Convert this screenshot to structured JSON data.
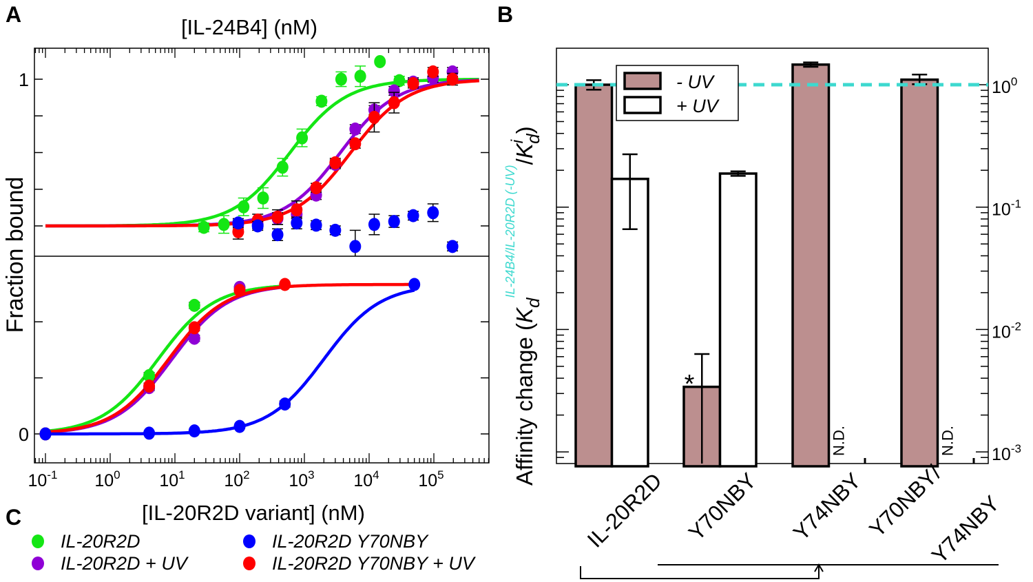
{
  "panel_labels": {
    "a": "A",
    "b": "B",
    "c": "C"
  },
  "colors": {
    "green": "#14e614",
    "purple": "#8f00d6",
    "red": "#ff0000",
    "blue": "#0000ff",
    "minus_uv_bar": "#bc8f8f",
    "reference_line": "#3dd9cf",
    "star": "#ffa500"
  },
  "chart_data": [
    {
      "type": "scatter",
      "panel": "A-top",
      "title": "[IL-24B4] (nM)",
      "ylabel": "Fraction bound",
      "x_scale": "log",
      "xlim": [
        0.07,
        700000
      ],
      "ylim": [
        -0.2,
        1.2
      ],
      "y_tick_labels": [
        {
          "value": 1,
          "label": "1"
        }
      ],
      "y_ticks": [
        0,
        0.25,
        0.5,
        0.75,
        1
      ],
      "series": [
        {
          "key": "green",
          "x": [
            28,
            57,
            115,
            230,
            460,
            920,
            1840,
            3700,
            7300,
            14700,
            29300
          ],
          "y": [
            -0.01,
            0.01,
            0.13,
            0.19,
            0.4,
            0.6,
            0.85,
            1.0,
            1.02,
            1.12,
            0.99
          ],
          "err": [
            0.03,
            0.06,
            0.06,
            0.07,
            0.06,
            0.06,
            0.03,
            0.05,
            0.07,
            0.0,
            0.03
          ],
          "fit_kd": 600
        },
        {
          "key": "purple",
          "x": [
            95,
            190,
            385,
            760,
            1520,
            3000,
            6100,
            12000,
            24300,
            48000,
            97000,
            194000
          ],
          "y": [
            0.01,
            0.01,
            0.05,
            0.08,
            0.21,
            0.42,
            0.66,
            0.79,
            0.92,
            0.98,
            1.01,
            1.05
          ],
          "err": [
            0.03,
            0.03,
            0.04,
            0.03,
            0.03,
            0.03,
            0.03,
            0.03,
            0.03,
            0.03,
            0.03,
            0.03
          ],
          "fit_kd": 3600
        },
        {
          "key": "red",
          "x": [
            95,
            190,
            385,
            760,
            1520,
            3000,
            6100,
            12000,
            24300,
            48000,
            97000,
            194000
          ],
          "y": [
            -0.04,
            0.04,
            0.06,
            0.11,
            0.26,
            0.43,
            0.56,
            0.74,
            0.84,
            0.97,
            1.05,
            1.0
          ],
          "err": [
            0.05,
            0.04,
            0.05,
            0.06,
            0.03,
            0.03,
            0.03,
            0.1,
            0.07,
            0.03,
            0.03,
            0.04
          ],
          "fit_kd": 5200
        },
        {
          "key": "blue",
          "x": [
            95,
            190,
            385,
            760,
            1520,
            3000,
            6100,
            12000,
            24300,
            48000,
            97000,
            194000
          ],
          "y": [
            0.02,
            0.0,
            -0.06,
            0.02,
            0.005,
            -0.03,
            -0.14,
            0.01,
            0.03,
            0.07,
            0.09,
            -0.14
          ],
          "err": [
            0.03,
            0.03,
            0.04,
            0.04,
            0.03,
            0.03,
            0.11,
            0.07,
            0.04,
            0.03,
            0.06,
            0.03
          ]
        }
      ]
    },
    {
      "type": "scatter",
      "panel": "A-bottom",
      "xlabel": "[IL-20R2D variant] (nM)",
      "x_scale": "log",
      "xlim": [
        0.07,
        700000
      ],
      "ylim": [
        -0.19,
        1.2
      ],
      "x_tick_labels": [
        "-1",
        "0",
        "1",
        "2",
        "3",
        "4",
        "5"
      ],
      "y_tick_labels": [
        {
          "value": 0,
          "label": "0"
        }
      ],
      "y_ticks": [
        0,
        0.375,
        0.75
      ],
      "series": [
        {
          "key": "green",
          "x": [
            0.1,
            4,
            20,
            100
          ],
          "y": [
            0.0,
            0.39,
            0.86,
            0.98
          ],
          "err": [
            0.01,
            0.02,
            0.02,
            0.01
          ],
          "fit_kd": 5.5,
          "fit_range": [
            0.1,
            500
          ]
        },
        {
          "key": "purple",
          "x": [
            0.1,
            4,
            20,
            100
          ],
          "y": [
            0.0,
            0.31,
            0.64,
            0.98
          ],
          "err": [
            0.01,
            0.02,
            0.02,
            0.01
          ],
          "fit_kd": 9,
          "fit_range": [
            0.1,
            500
          ]
        },
        {
          "key": "red",
          "x": [
            0.1,
            4,
            20,
            100,
            500
          ],
          "y": [
            0.0,
            0.32,
            0.71,
            0.96,
            1.0
          ],
          "err": [
            0.01,
            0.02,
            0.02,
            0.01,
            0.01
          ],
          "fit_kd": 8,
          "fit_range": [
            0.1,
            50000
          ]
        },
        {
          "key": "blue",
          "x": [
            0.1,
            4,
            20,
            100,
            500,
            50000
          ],
          "y": [
            0.0,
            0.005,
            0.02,
            0.05,
            0.2,
            1.0
          ],
          "err": [
            0.01,
            0.01,
            0.01,
            0.01,
            0.02,
            0.01
          ],
          "fit_kd": 2000,
          "fit_range": [
            0.1,
            50000
          ]
        }
      ]
    },
    {
      "type": "bar",
      "panel": "B",
      "y_scale": "log",
      "ylim": [
        0.0008,
        2.0
      ],
      "ylabel_main": "Affinity change (",
      "ylabel_k": "K",
      "ylabel_sub": "d",
      "ylabel_sup": "IL-24B4/IL-20R2D (-UV)",
      "ylabel_slash": "/",
      "ylabel_k2": "K",
      "ylabel_sub2": "d",
      "ylabel_sup2": "i",
      "ylabel_close": ")",
      "y_tick_exponents": [
        "0",
        "-1",
        "-2",
        "-3"
      ],
      "categories": [
        "IL-20R2D",
        "Y70NBY",
        "Y74NBY",
        "Y70NBY/\nY74NBY"
      ],
      "category_lines": [
        [
          "IL-20R2D"
        ],
        [
          "Y70NBY"
        ],
        [
          "Y74NBY"
        ],
        [
          "Y70NBY/",
          "Y74NBY"
        ]
      ],
      "legend": [
        {
          "key": "minus_uv",
          "label": "- UV"
        },
        {
          "key": "plus_uv",
          "label": "+ UV"
        }
      ],
      "legend_placement": "top-center",
      "reference_line": 1.0,
      "series": [
        {
          "key": "minus_uv",
          "name": "- UV",
          "values": [
            1.0,
            0.0034,
            1.46,
            1.1
          ],
          "err_low": [
            0.91,
            0.0008,
            1.4,
            1.01
          ],
          "err_high": [
            1.09,
            0.0063,
            1.52,
            1.21
          ]
        },
        {
          "key": "plus_uv",
          "name": "+ UV",
          "values": [
            0.17,
            0.188,
            null,
            null
          ],
          "err_low": [
            0.066,
            0.18,
            null,
            null
          ],
          "err_high": [
            0.27,
            0.196,
            null,
            null
          ]
        }
      ],
      "not_determined_label": "N.D.",
      "significance_marker": "*"
    }
  ],
  "legend_c": [
    {
      "key": "green",
      "label": "IL-20R2D"
    },
    {
      "key": "purple",
      "label": "IL-20R2D + UV"
    },
    {
      "key": "blue",
      "label": "IL-20R2D Y70NBY"
    },
    {
      "key": "red",
      "label": "IL-20R2D Y70NBY + UV"
    }
  ]
}
